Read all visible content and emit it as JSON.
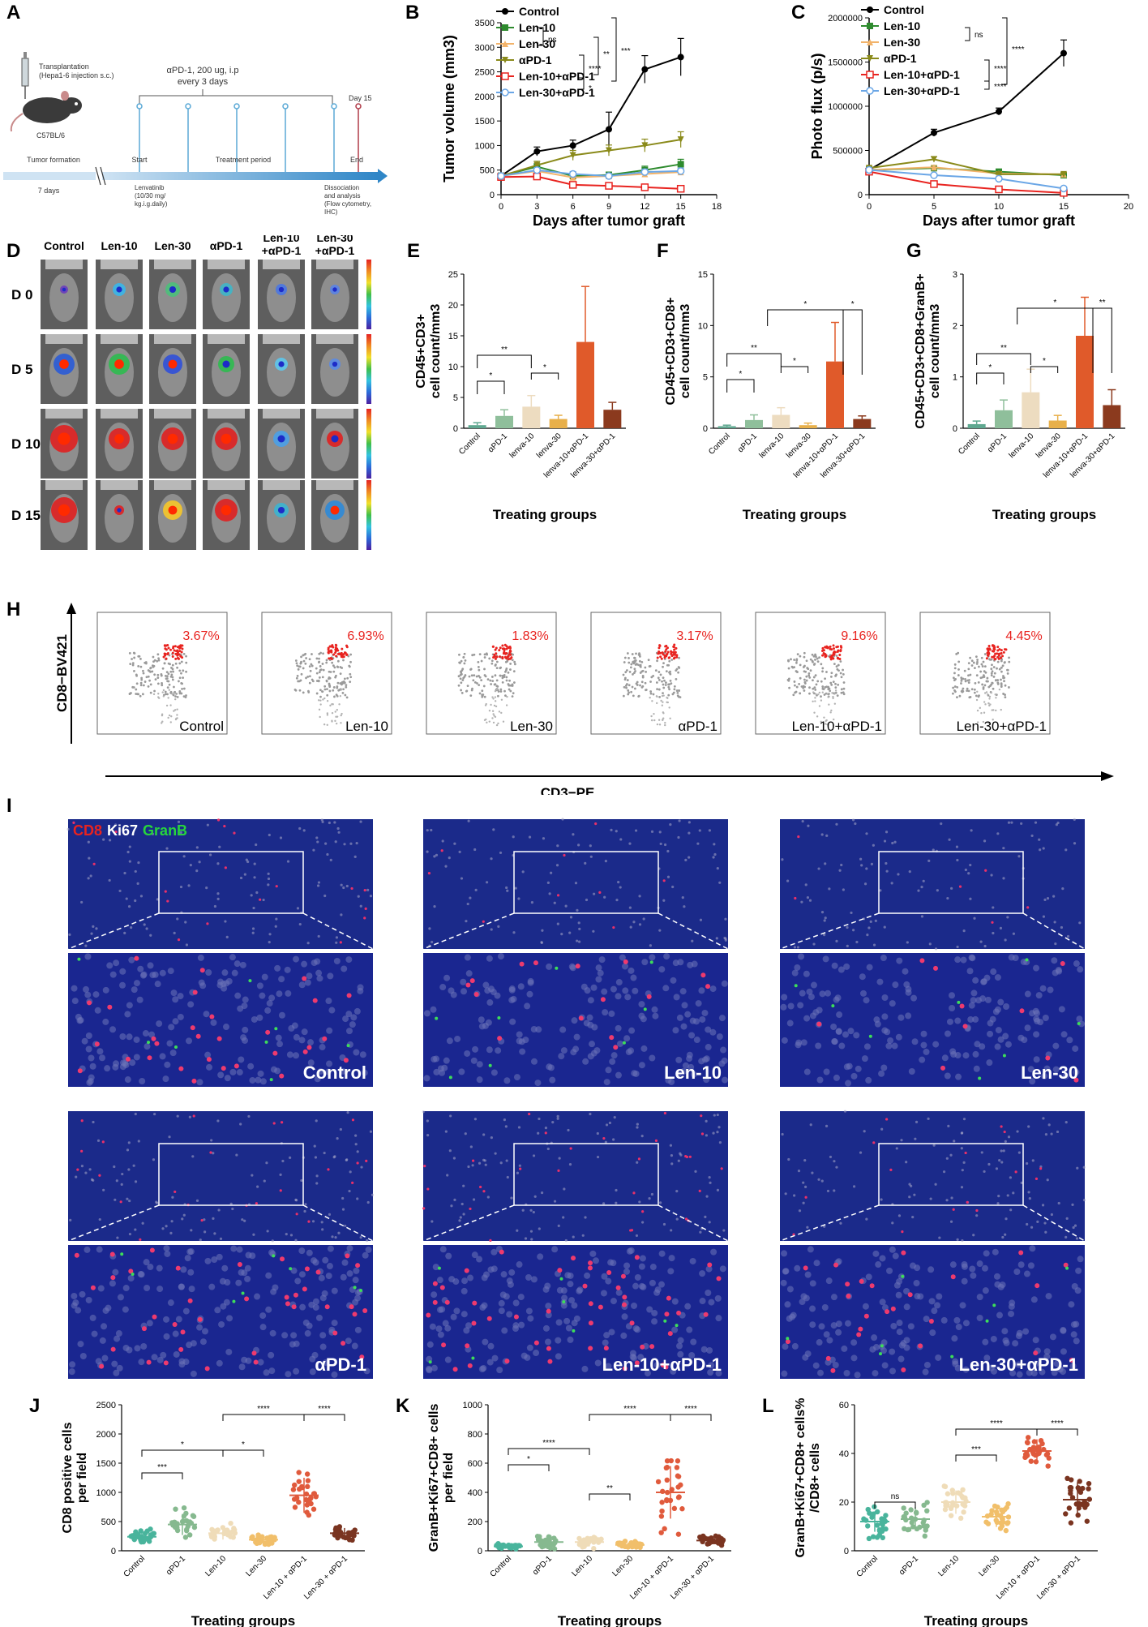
{
  "letters": {
    "A": "A",
    "B": "B",
    "C": "C",
    "D": "D",
    "E": "E",
    "F": "F",
    "G": "G",
    "H": "H",
    "I": "I",
    "J": "J",
    "K": "K",
    "L": "L"
  },
  "schematic": {
    "transplant": "Transplantation",
    "transplant_sub": "(Hepa1-6 injection s.c.)",
    "treatment_top1": "αPD-1, 200 ug, i.p",
    "treatment_top2": "every 3 days",
    "day15": "Day 15",
    "strain": "C57BL/6",
    "stage1": "Tumor formation",
    "start": "Start",
    "period": "Treatment period",
    "end": "End",
    "days7": "7 days",
    "lenva1": "Lenvatinib",
    "lenva2": "(10/30 mg/",
    "lenva3": "kg.i.g.daily)",
    "diss1": "Dissociation",
    "diss2": "and analysis",
    "diss3": "(Flow cytometry,",
    "diss4": "IHC)"
  },
  "legend_groups": [
    "Control",
    "Len-10",
    "Len-30",
    "αPD-1",
    "Len-10+αPD-1",
    "Len-30+αPD-1"
  ],
  "bar_groups": [
    "Control",
    "αPD-1",
    "lenva-10",
    "lenva-30",
    "lenva-10+αPD-1",
    "lenva-30+αPD-1"
  ],
  "dot_groups": [
    "Control",
    "αPD-1",
    "Len-10",
    "Len-30",
    "Len-10 + αPD-1",
    "Len-30 + αPD-1"
  ],
  "colors": {
    "control": "#000000",
    "len10": "#2e8b2e",
    "len30": "#f2b36a",
    "apd1": "#8a8a1a",
    "len10apd1": "#e8231f",
    "len30apd1": "#6aa6e6",
    "bar": [
      "#5fa890",
      "#8fbf9b",
      "#eddcc0",
      "#e8b04a",
      "#e05a2a",
      "#8b3a1e"
    ],
    "dot": [
      "#49b49c",
      "#86b98f",
      "#efdcb8",
      "#f1bf6a",
      "#e05a3c",
      "#7a3420"
    ],
    "flow_pct": "#e8231f",
    "if_label": "#ffffff"
  },
  "chart_data": [
    {
      "panel": "B",
      "type": "line",
      "ylabel": "Tumor volume (mm3)",
      "xlabel": "Days after tumor graft",
      "xlim": [
        0,
        18
      ],
      "ylim": [
        0,
        3500
      ],
      "xticks": [
        0,
        3,
        6,
        9,
        12,
        15,
        18
      ],
      "yticks": [
        0,
        500,
        1000,
        1500,
        2000,
        2500,
        3000,
        3500
      ],
      "x": [
        0,
        3,
        6,
        9,
        12,
        15
      ],
      "series": [
        {
          "name": "Control",
          "values": [
            380,
            880,
            1000,
            1330,
            2550,
            2800
          ],
          "err": [
            60,
            90,
            110,
            350,
            280,
            380
          ]
        },
        {
          "name": "Len-10",
          "values": [
            380,
            570,
            380,
            400,
            500,
            620
          ],
          "err": [
            50,
            60,
            60,
            60,
            80,
            100
          ]
        },
        {
          "name": "Len-30",
          "values": [
            380,
            480,
            350,
            380,
            420,
            460
          ],
          "err": [
            50,
            50,
            50,
            50,
            60,
            60
          ]
        },
        {
          "name": "αPD-1",
          "values": [
            380,
            600,
            800,
            900,
            1000,
            1120
          ],
          "err": [
            60,
            80,
            100,
            110,
            130,
            160
          ]
        },
        {
          "name": "Len-10+αPD-1",
          "values": [
            360,
            370,
            200,
            180,
            150,
            120
          ],
          "err": [
            50,
            40,
            30,
            30,
            20,
            20
          ]
        },
        {
          "name": "Len-30+αPD-1",
          "values": [
            380,
            500,
            420,
            380,
            460,
            480
          ],
          "err": [
            50,
            50,
            50,
            50,
            60,
            60
          ]
        }
      ],
      "sig": [
        "ns",
        "****",
        "*",
        "**",
        "***"
      ]
    },
    {
      "panel": "C",
      "type": "line",
      "ylabel": "Photo flux (p/s)",
      "xlabel": "Days after tumor graft",
      "xlim": [
        0,
        20
      ],
      "ylim": [
        0,
        2000000
      ],
      "xticks": [
        0,
        5,
        10,
        15,
        20
      ],
      "yticks": [
        0,
        500000,
        1000000,
        1500000,
        2000000
      ],
      "x": [
        0,
        5,
        10,
        15
      ],
      "series": [
        {
          "name": "Control",
          "values": [
            280000,
            700000,
            940000,
            1600000
          ],
          "err": [
            30000,
            40000,
            40000,
            150000
          ]
        },
        {
          "name": "Len-10",
          "values": [
            280000,
            300000,
            260000,
            220000
          ],
          "err": [
            20000,
            20000,
            20000,
            20000
          ]
        },
        {
          "name": "Len-30",
          "values": [
            280000,
            310000,
            240000,
            230000
          ],
          "err": [
            20000,
            20000,
            20000,
            20000
          ]
        },
        {
          "name": "αPD-1",
          "values": [
            300000,
            400000,
            230000,
            230000
          ],
          "err": [
            20000,
            30000,
            20000,
            20000
          ]
        },
        {
          "name": "Len-10+αPD-1",
          "values": [
            260000,
            120000,
            60000,
            20000
          ],
          "err": [
            20000,
            20000,
            10000,
            5000
          ]
        },
        {
          "name": "Len-30+αPD-1",
          "values": [
            280000,
            220000,
            180000,
            70000
          ],
          "err": [
            20000,
            20000,
            20000,
            10000
          ]
        }
      ],
      "sig": [
        "ns",
        "****",
        "****",
        "****"
      ]
    },
    {
      "panel": "E",
      "type": "bar",
      "ylabel": "CD45+CD3+ cell count/mm3",
      "xlabel": "Treating groups",
      "ylim": [
        0,
        25
      ],
      "yticks": [
        0,
        5,
        10,
        15,
        20,
        25
      ],
      "values": [
        0.5,
        2.0,
        3.5,
        1.5,
        14.0,
        3.0
      ],
      "err": [
        0.4,
        1.0,
        1.8,
        0.6,
        9.0,
        1.2
      ],
      "sig": [
        "*",
        "**",
        "*"
      ]
    },
    {
      "panel": "F",
      "type": "bar",
      "ylabel": "CD45+CD3+CD8+ cell count/mm3",
      "xlabel": "Treating groups",
      "ylim": [
        0,
        15
      ],
      "yticks": [
        0,
        5,
        10,
        15
      ],
      "values": [
        0.2,
        0.8,
        1.3,
        0.3,
        6.5,
        0.9
      ],
      "err": [
        0.1,
        0.5,
        0.7,
        0.2,
        3.8,
        0.3
      ],
      "sig": [
        "*",
        "**",
        "*",
        "*",
        "*"
      ]
    },
    {
      "panel": "G",
      "type": "bar",
      "ylabel": "CD45+CD3+CD8+GranB+ cell count/mm3",
      "xlabel": "Treating groups",
      "ylim": [
        0,
        3
      ],
      "yticks": [
        0,
        1,
        2,
        3
      ],
      "values": [
        0.08,
        0.35,
        0.7,
        0.15,
        1.8,
        0.45
      ],
      "err": [
        0.06,
        0.2,
        0.45,
        0.1,
        0.75,
        0.3
      ],
      "sig": [
        "*",
        "**",
        "*",
        "*",
        "**"
      ]
    },
    {
      "panel": "J",
      "type": "scatter",
      "ylabel": "CD8 positive cells per field",
      "xlabel": "Treating groups",
      "ylim": [
        0,
        2500
      ],
      "yticks": [
        0,
        500,
        1000,
        1500,
        2000,
        2500
      ],
      "means": [
        240,
        450,
        300,
        190,
        950,
        300
      ],
      "spread": [
        150,
        300,
        180,
        100,
        500,
        150
      ],
      "sig": [
        "***",
        "*",
        "*",
        "****",
        "****"
      ]
    },
    {
      "panel": "K",
      "type": "scatter",
      "ylabel": "GranB+Ki67+CD8+ cells per field",
      "xlabel": "Treating groups",
      "ylim": [
        0,
        1000
      ],
      "yticks": [
        0,
        200,
        400,
        600,
        800,
        1000
      ],
      "means": [
        30,
        60,
        60,
        40,
        400,
        70
      ],
      "spread": [
        20,
        60,
        50,
        30,
        300,
        50
      ],
      "sig": [
        "*",
        "****",
        "**",
        "****",
        "****"
      ]
    },
    {
      "panel": "L",
      "type": "scatter",
      "ylabel": "GranB+Ki67+CD8+ cells% /CD8+ cells",
      "xlabel": "Treating groups",
      "ylim": [
        0,
        60
      ],
      "yticks": [
        0,
        20,
        40,
        60
      ],
      "means": [
        12,
        13,
        20,
        14,
        41,
        21
      ],
      "spread": [
        7,
        8,
        8,
        7,
        8,
        12
      ],
      "sig": [
        "ns",
        "***",
        "****",
        "****"
      ]
    }
  ],
  "bli": {
    "cols": [
      "Control",
      "Len-10",
      "Len-30",
      "αPD-1",
      "Len-10\n+αPD-1",
      "Len-30\n+αPD-1"
    ],
    "rows": [
      "D 0",
      "D 5",
      "D 10",
      "D 15"
    ]
  },
  "flow": {
    "ylabel": "CD8−BV421",
    "xlabel": "CD3−PE",
    "plots": [
      {
        "label": "Control",
        "pct": "3.67%"
      },
      {
        "label": "Len-10",
        "pct": "6.93%"
      },
      {
        "label": "Len-30",
        "pct": "1.83%"
      },
      {
        "label": "αPD-1",
        "pct": "3.17%"
      },
      {
        "label": "Len-10+αPD-1",
        "pct": "9.16%"
      },
      {
        "label": "Len-30+αPD-1",
        "pct": "4.45%"
      }
    ]
  },
  "if_panel": {
    "legend_cd8": "CD8",
    "legend_ki67": "Ki67",
    "legend_granb": "GranB",
    "labels": [
      "Control",
      "Len-10",
      "Len-30",
      "αPD-1",
      "Len-10+αPD-1",
      "Len-30+αPD-1"
    ]
  }
}
